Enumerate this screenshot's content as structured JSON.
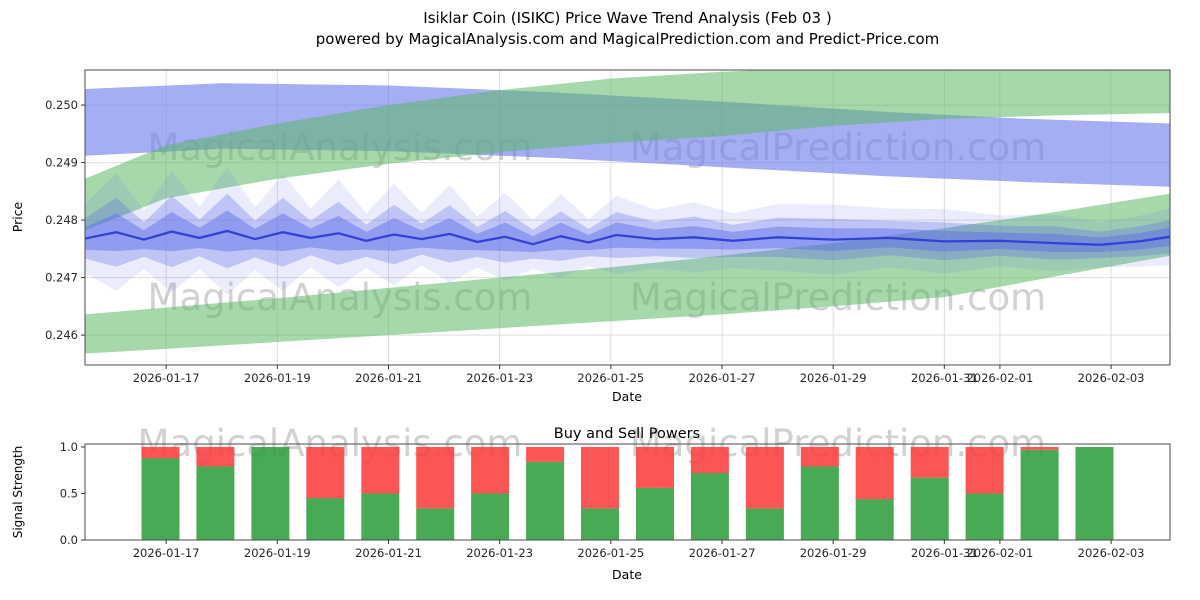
{
  "header": {
    "title_line1": "Isiklar Coin (ISIKC) Price Wave Trend Analysis (Feb 03 )",
    "title_line2": "powered by MagicalAnalysis.com and MagicalPrediction.com and Predict-Price.com"
  },
  "watermarks": {
    "analysis": "MagicalAnalysis.com",
    "prediction": "MagicalPrediction.com"
  },
  "chart_data": [
    {
      "type": "area",
      "title": "",
      "xlabel": "Date",
      "ylabel": "Price",
      "x_origin_date": "2026-01-15",
      "xlim_days": [
        0.54,
        20.06
      ],
      "ylim": [
        0.24548,
        0.25061
      ],
      "grid": true,
      "yticks": [
        {
          "label": "0.246",
          "value": 0.246
        },
        {
          "label": "0.247",
          "value": 0.247
        },
        {
          "label": "0.248",
          "value": 0.248
        },
        {
          "label": "0.249",
          "value": 0.249
        },
        {
          "label": "0.250",
          "value": 0.25
        }
      ],
      "xticks": [
        {
          "label": "2026-01-17",
          "day": 2
        },
        {
          "label": "2026-01-19",
          "day": 4
        },
        {
          "label": "2026-01-21",
          "day": 6
        },
        {
          "label": "2026-01-23",
          "day": 8
        },
        {
          "label": "2026-01-25",
          "day": 10
        },
        {
          "label": "2026-01-27",
          "day": 12
        },
        {
          "label": "2026-01-29",
          "day": 14
        },
        {
          "label": "2026-01-31",
          "day": 16
        },
        {
          "label": "2026-02-01",
          "day": 17
        },
        {
          "label": "2026-02-03",
          "day": 19
        }
      ],
      "bands": [
        {
          "name": "blue-projection-band",
          "color": "#6e7deb",
          "opacity": 0.62,
          "points": [
            [
              0.54,
              0.24912,
              0.25028
            ],
            [
              3,
              0.24924,
              0.25038
            ],
            [
              6,
              0.2492,
              0.25034
            ],
            [
              9,
              0.24908,
              0.25022
            ],
            [
              12,
              0.24892,
              0.25006
            ],
            [
              15,
              0.24876,
              0.24988
            ],
            [
              17.5,
              0.24866,
              0.24976
            ],
            [
              20.06,
              0.24858,
              0.24968
            ]
          ]
        },
        {
          "name": "upper-green-trend-band",
          "color": "#5cb868",
          "opacity": 0.55,
          "points": [
            [
              0.54,
              0.24782,
              0.24872
            ],
            [
              2,
              0.24838,
              0.2493
            ],
            [
              4,
              0.24872,
              0.24968
            ],
            [
              6,
              0.24898,
              0.25
            ],
            [
              8,
              0.24918,
              0.25026
            ],
            [
              10,
              0.24934,
              0.25046
            ],
            [
              12,
              0.24946,
              0.25058
            ],
            [
              14,
              0.24964,
              0.25066
            ],
            [
              16,
              0.24976,
              0.2507
            ],
            [
              18,
              0.24982,
              0.25072
            ],
            [
              20.06,
              0.24986,
              0.25078
            ]
          ]
        },
        {
          "name": "lower-green-trend-band",
          "color": "#5cb868",
          "opacity": 0.55,
          "points": [
            [
              0.54,
              0.24568,
              0.24636
            ],
            [
              2,
              0.24576,
              0.24648
            ],
            [
              4,
              0.24588,
              0.24664
            ],
            [
              6,
              0.246,
              0.24682
            ],
            [
              8,
              0.24612,
              0.247
            ],
            [
              10,
              0.24624,
              0.24718
            ],
            [
              12,
              0.24636,
              0.24738
            ],
            [
              14,
              0.2465,
              0.2476
            ],
            [
              16,
              0.24666,
              0.24786
            ],
            [
              18,
              0.24702,
              0.24814
            ],
            [
              20.06,
              0.24738,
              0.24846
            ]
          ]
        }
      ],
      "wave": {
        "name": "price-wave",
        "line_color": "#3441d8",
        "halo_color": "#5a6ae8",
        "x_days": [
          0.54,
          1.1,
          1.6,
          2.1,
          2.6,
          3.1,
          3.6,
          4.1,
          4.6,
          5.1,
          5.6,
          6.1,
          6.6,
          7.1,
          7.6,
          8.1,
          8.6,
          9.1,
          9.6,
          10.1,
          10.8,
          11.5,
          12.2,
          13.0,
          14.0,
          15.0,
          16.0,
          17.0,
          18.0,
          18.8,
          19.5,
          20.06
        ],
        "center": [
          0.24768,
          0.24779,
          0.24766,
          0.2478,
          0.24769,
          0.24781,
          0.24767,
          0.24779,
          0.24769,
          0.24777,
          0.24764,
          0.24775,
          0.24767,
          0.24776,
          0.24762,
          0.24771,
          0.24758,
          0.24772,
          0.24761,
          0.24774,
          0.24767,
          0.2477,
          0.24764,
          0.2477,
          0.24766,
          0.24769,
          0.24763,
          0.24764,
          0.2476,
          0.24757,
          0.24763,
          0.24771
        ],
        "spread": [
          0.00035,
          0.0006,
          0.0003,
          0.00062,
          0.00032,
          0.00065,
          0.00032,
          0.0006,
          0.0003,
          0.00055,
          0.00028,
          0.00052,
          0.00027,
          0.0005,
          0.00026,
          0.00045,
          0.00025,
          0.00043,
          0.00024,
          0.0004,
          0.0003,
          0.00036,
          0.00028,
          0.00034,
          0.00036,
          0.0003,
          0.00033,
          0.00026,
          0.00029,
          0.00023,
          0.00026,
          0.00029
        ]
      }
    },
    {
      "type": "bar",
      "stacked": true,
      "title": "Buy and Sell Powers",
      "xlabel": "Date",
      "ylabel": "Signal Strength",
      "ylim": [
        0,
        1.032
      ],
      "grid": false,
      "yticks": [
        {
          "label": "0.0",
          "value": 0.0
        },
        {
          "label": "0.5",
          "value": 0.5
        },
        {
          "label": "1.0",
          "value": 1.0
        }
      ],
      "xticks": [
        {
          "label": "2026-01-17",
          "day": 2
        },
        {
          "label": "2026-01-19",
          "day": 4
        },
        {
          "label": "2026-01-21",
          "day": 6
        },
        {
          "label": "2026-01-23",
          "day": 8
        },
        {
          "label": "2026-01-25",
          "day": 10
        },
        {
          "label": "2026-01-27",
          "day": 12
        },
        {
          "label": "2026-01-29",
          "day": 14
        },
        {
          "label": "2026-01-31",
          "day": 16
        },
        {
          "label": "2026-02-01",
          "day": 17
        },
        {
          "label": "2026-02-03",
          "day": 19
        }
      ],
      "series": [
        {
          "name": "buy",
          "color": "#2f9e3c",
          "values": [
            0.88,
            0.79,
            1.0,
            0.45,
            0.5,
            0.34,
            0.5,
            0.84,
            0.34,
            0.56,
            0.72,
            0.34,
            0.79,
            0.44,
            0.67,
            0.5,
            0.97,
            1.0
          ]
        },
        {
          "name": "sell",
          "color": "#fb3d3d",
          "values": [
            0.12,
            0.21,
            0.0,
            0.55,
            0.5,
            0.66,
            0.5,
            0.16,
            0.66,
            0.44,
            0.28,
            0.66,
            0.21,
            0.56,
            0.33,
            0.5,
            0.03,
            0.0
          ]
        }
      ]
    }
  ]
}
